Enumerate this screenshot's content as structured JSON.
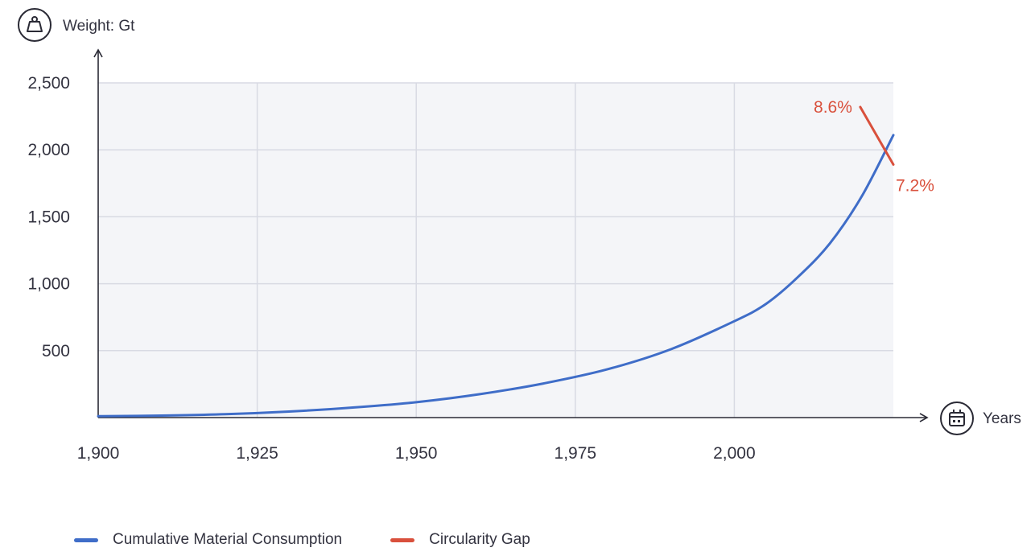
{
  "chart_data": {
    "type": "line",
    "ylabel": "Weight: Gt",
    "xlabel": "Years",
    "xlim": [
      1900,
      2025
    ],
    "ylim": [
      0,
      2500
    ],
    "x_ticks": [
      1900,
      1925,
      1950,
      1975,
      2000
    ],
    "x_tick_labels": [
      "1,900",
      "1,925",
      "1,950",
      "1,975",
      "2,000"
    ],
    "y_ticks": [
      500,
      1000,
      1500,
      2000,
      2500
    ],
    "y_tick_labels": [
      "500",
      "1,000",
      "1,500",
      "2,000",
      "2,500"
    ],
    "grid": true,
    "series": [
      {
        "name": "Cumulative Material Consumption",
        "color": "#3f6dc8",
        "x": [
          1900,
          1910,
          1920,
          1930,
          1940,
          1950,
          1960,
          1970,
          1980,
          1990,
          2000,
          2005,
          2010,
          2015,
          2020,
          2025
        ],
        "y": [
          10,
          15,
          25,
          45,
          75,
          115,
          175,
          255,
          360,
          510,
          720,
          850,
          1050,
          1300,
          1650,
          2110
        ]
      },
      {
        "name": "Circularity Gap",
        "color": "#d9503c",
        "x": [
          2019.8,
          2025
        ],
        "y": [
          2320,
          1890
        ]
      }
    ],
    "annotations": [
      {
        "text": "8.6%",
        "series": "Circularity Gap",
        "point": "start"
      },
      {
        "text": "7.2%",
        "series": "Circularity Gap",
        "point": "end"
      }
    ],
    "legend_position": "bottom-left"
  },
  "icons": {
    "y_axis": "weight-icon",
    "x_axis": "calendar-icon"
  }
}
